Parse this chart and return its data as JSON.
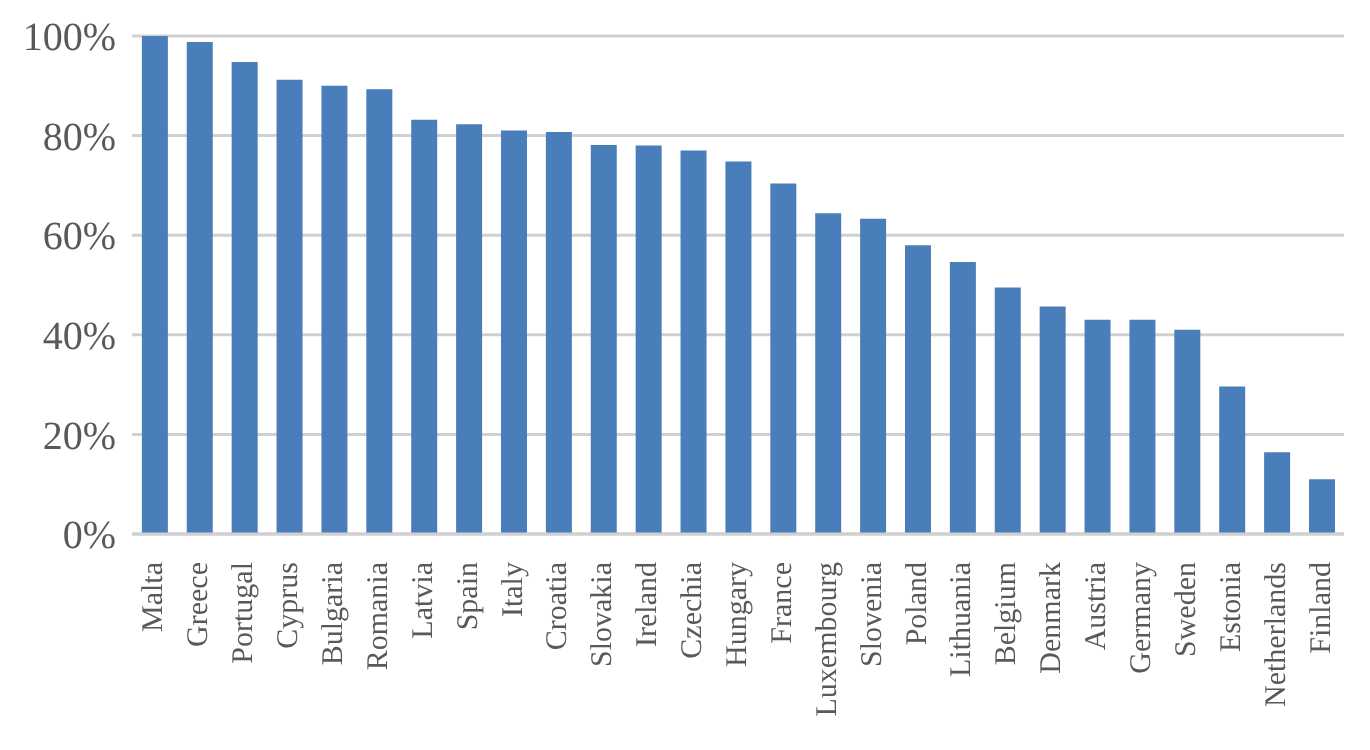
{
  "chart_data": {
    "type": "bar",
    "categories": [
      "Malta",
      "Greece",
      "Portugal",
      "Cyprus",
      "Bulgaria",
      "Romania",
      "Latvia",
      "Spain",
      "Italy",
      "Croatia",
      "Slovakia",
      "Ireland",
      "Czechia",
      "Hungary",
      "France",
      "Luxembourg",
      "Slovenia",
      "Poland",
      "Lithuania",
      "Belgium",
      "Denmark",
      "Austria",
      "Germany",
      "Sweden",
      "Estonia",
      "Netherlands",
      "Finland"
    ],
    "values": [
      100,
      98.8,
      94.8,
      91.2,
      90,
      89.3,
      83.2,
      82.3,
      81,
      80.7,
      78.1,
      78,
      77,
      74.8,
      70.4,
      64.4,
      63.3,
      58,
      54.6,
      49.5,
      45.7,
      43,
      43,
      41,
      29.6,
      16.4,
      11
    ],
    "color": "#4a7ebb",
    "ylim": [
      0,
      100
    ],
    "yticks": [
      {
        "value": 0,
        "label": "0%"
      },
      {
        "value": 20,
        "label": "20%"
      },
      {
        "value": 40,
        "label": "40%"
      },
      {
        "value": 60,
        "label": "60%"
      },
      {
        "value": 80,
        "label": "80%"
      },
      {
        "value": 100,
        "label": "100%"
      }
    ],
    "grid": "y"
  }
}
